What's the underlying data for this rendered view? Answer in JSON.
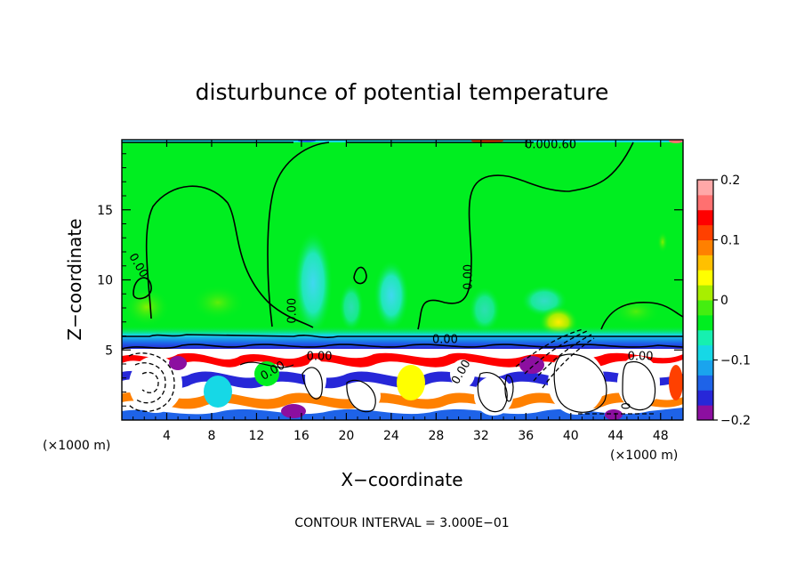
{
  "chart_data": {
    "type": "heatmap",
    "title": "disturbunce of potential temperature",
    "xlabel": "X−coordinate",
    "ylabel": "Z−coordinate",
    "x_unit_left": "(×1000 m)",
    "x_unit_right": "(×1000 m)",
    "xlim": [
      0,
      50
    ],
    "ylim": [
      0,
      20
    ],
    "x_ticks": [
      4,
      8,
      12,
      16,
      20,
      24,
      28,
      32,
      36,
      40,
      44,
      48
    ],
    "x_tick_labels": [
      "4",
      "8",
      "12",
      "16",
      "20",
      "24",
      "28",
      "32",
      "36",
      "40",
      "44",
      "48"
    ],
    "y_ticks": [
      5,
      10,
      15
    ],
    "y_tick_labels": [
      "5",
      "10",
      "15"
    ],
    "colorbar": {
      "range": [
        -0.2,
        0.2
      ],
      "tick_values": [
        0.2,
        0.1,
        0,
        -0.1,
        -0.2
      ],
      "tick_labels": [
        "0.2",
        "0.1",
        "0",
        "−0.1",
        "−0.2"
      ],
      "colors": [
        "#8c0fa0",
        "#2727d8",
        "#1e63e8",
        "#1aa4ee",
        "#16d8e6",
        "#16f0b0",
        "#00ee20",
        "#44ee10",
        "#a8ee00",
        "#ffff00",
        "#ffc000",
        "#ff8000",
        "#ff4000",
        "#ff0000",
        "#ff7070",
        "#ffa8a8"
      ]
    },
    "contour_labels": [
      {
        "text": "0.00",
        "x": 1.2,
        "y": 10.9,
        "rotate": 60
      },
      {
        "text": "0.00",
        "x": 15.5,
        "y": 7.8,
        "rotate": -90
      },
      {
        "text": "0.00",
        "x": 31.2,
        "y": 10.2,
        "rotate": -90
      },
      {
        "text": "0.00",
        "x": 28.8,
        "y": 5.5,
        "rotate": 0
      },
      {
        "text": "0.00",
        "x": 13.6,
        "y": 3.3,
        "rotate": -30
      },
      {
        "text": "0.00",
        "x": 30.5,
        "y": 3.3,
        "rotate": -60
      },
      {
        "text": "0.00",
        "x": 46.2,
        "y": 4.3,
        "rotate": 0
      },
      {
        "text": "0.00",
        "x": 17.6,
        "y": 4.3,
        "rotate": 0
      },
      {
        "text": "0.000.60",
        "x": 38.2,
        "y": 19.4,
        "rotate": 0
      },
      {
        "text": "0",
        "x": 45.3,
        "y": 1.0,
        "rotate": -90
      }
    ],
    "contour_interval_text": "CONTOUR INTERVAL = 3.000E−01",
    "grid": false
  }
}
